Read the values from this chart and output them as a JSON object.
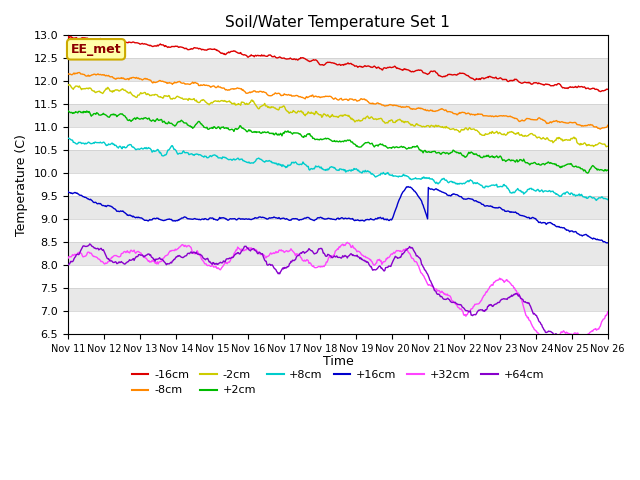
{
  "title": "Soil/Water Temperature Set 1",
  "xlabel": "Time",
  "ylabel": "Temperature (C)",
  "ylim": [
    6.5,
    13.0
  ],
  "annotation": "EE_met",
  "legend_labels": [
    "-16cm",
    "-8cm",
    "-2cm",
    "+2cm",
    "+8cm",
    "+16cm",
    "+32cm",
    "+64cm"
  ],
  "legend_colors": [
    "#dd0000",
    "#ff8800",
    "#cccc00",
    "#00bb00",
    "#00cccc",
    "#0000cc",
    "#ff44ff",
    "#8800cc"
  ],
  "x_tick_labels": [
    "Nov 11",
    "Nov 12",
    "Nov 13",
    "Nov 14",
    "Nov 15",
    "Nov 16",
    "Nov 17",
    "Nov 18",
    "Nov 19",
    "Nov 20",
    "Nov 21",
    "Nov 22",
    "Nov 23",
    "Nov 24",
    "Nov 25",
    "Nov 26"
  ]
}
